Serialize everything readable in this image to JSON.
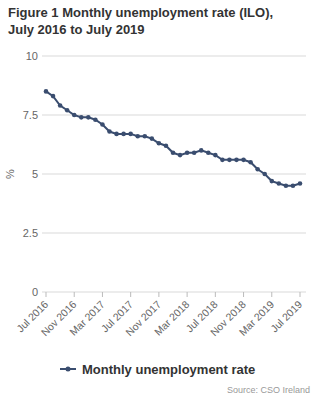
{
  "chart_data": {
    "type": "line",
    "title": "Figure 1 Monthly unemployment rate (ILO), July 2016 to July 2019",
    "y_label": "%",
    "categories": [
      "Jul 2016",
      null,
      null,
      null,
      "Nov 2016",
      null,
      null,
      null,
      "Mar 2017",
      null,
      null,
      null,
      "Jul 2017",
      null,
      null,
      null,
      "Nov 2017",
      null,
      null,
      null,
      "Mar 2018",
      null,
      null,
      null,
      "Jul 2018",
      null,
      null,
      null,
      "Nov 2018",
      null,
      null,
      null,
      "Mar 2019",
      null,
      null,
      null,
      "Jul 2019"
    ],
    "series": [
      {
        "name": "Monthly unemployment rate",
        "color": "#3a4d6f",
        "marker": "circle",
        "values": [
          8.5,
          8.3,
          7.9,
          7.7,
          7.5,
          7.4,
          7.4,
          7.3,
          7.1,
          6.8,
          6.7,
          6.7,
          6.7,
          6.6,
          6.6,
          6.5,
          6.3,
          6.2,
          5.9,
          5.8,
          5.9,
          5.9,
          6.0,
          5.9,
          5.8,
          5.6,
          5.6,
          5.6,
          5.6,
          5.5,
          5.2,
          5.0,
          4.7,
          4.6,
          4.5,
          4.5,
          4.6
        ]
      }
    ],
    "ylim": [
      0,
      10
    ],
    "yticks": [
      0,
      2.5,
      5,
      7.5,
      10
    ],
    "grid": true,
    "legend": "bottom",
    "source": "Source: CSO Ireland"
  }
}
